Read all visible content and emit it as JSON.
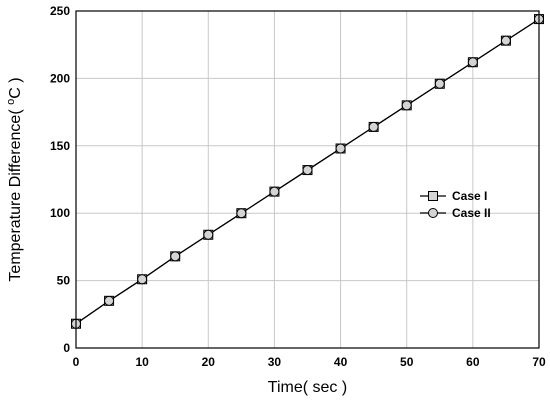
{
  "chart_data": {
    "type": "line",
    "xlabel": "Time( sec )",
    "ylabel": "Temperature Difference( ",
    "ylabel_unit_sup": "o",
    "ylabel_unit": "C )",
    "xlim": [
      0,
      70
    ],
    "ylim": [
      0,
      250
    ],
    "xticks": [
      0,
      10,
      20,
      30,
      40,
      50,
      60,
      70
    ],
    "yticks": [
      0,
      50,
      100,
      150,
      200,
      250
    ],
    "grid": true,
    "legend_position": "right",
    "x": [
      0,
      5,
      10,
      15,
      20,
      25,
      30,
      35,
      40,
      45,
      50,
      55,
      60,
      65,
      70
    ],
    "series": [
      {
        "name": "Case I",
        "marker": "square",
        "values": [
          18,
          35,
          51,
          68,
          84,
          100,
          116,
          132,
          148,
          164,
          180,
          196,
          212,
          228,
          244
        ]
      },
      {
        "name": "Case II",
        "marker": "circle",
        "values": [
          18,
          35,
          51,
          68,
          84,
          100,
          116,
          132,
          148,
          164,
          180,
          196,
          212,
          228,
          244
        ]
      }
    ],
    "colors": {
      "line": "#000000",
      "marker_fill": "#d4d4d4",
      "grid": "#c8c8c8"
    }
  }
}
